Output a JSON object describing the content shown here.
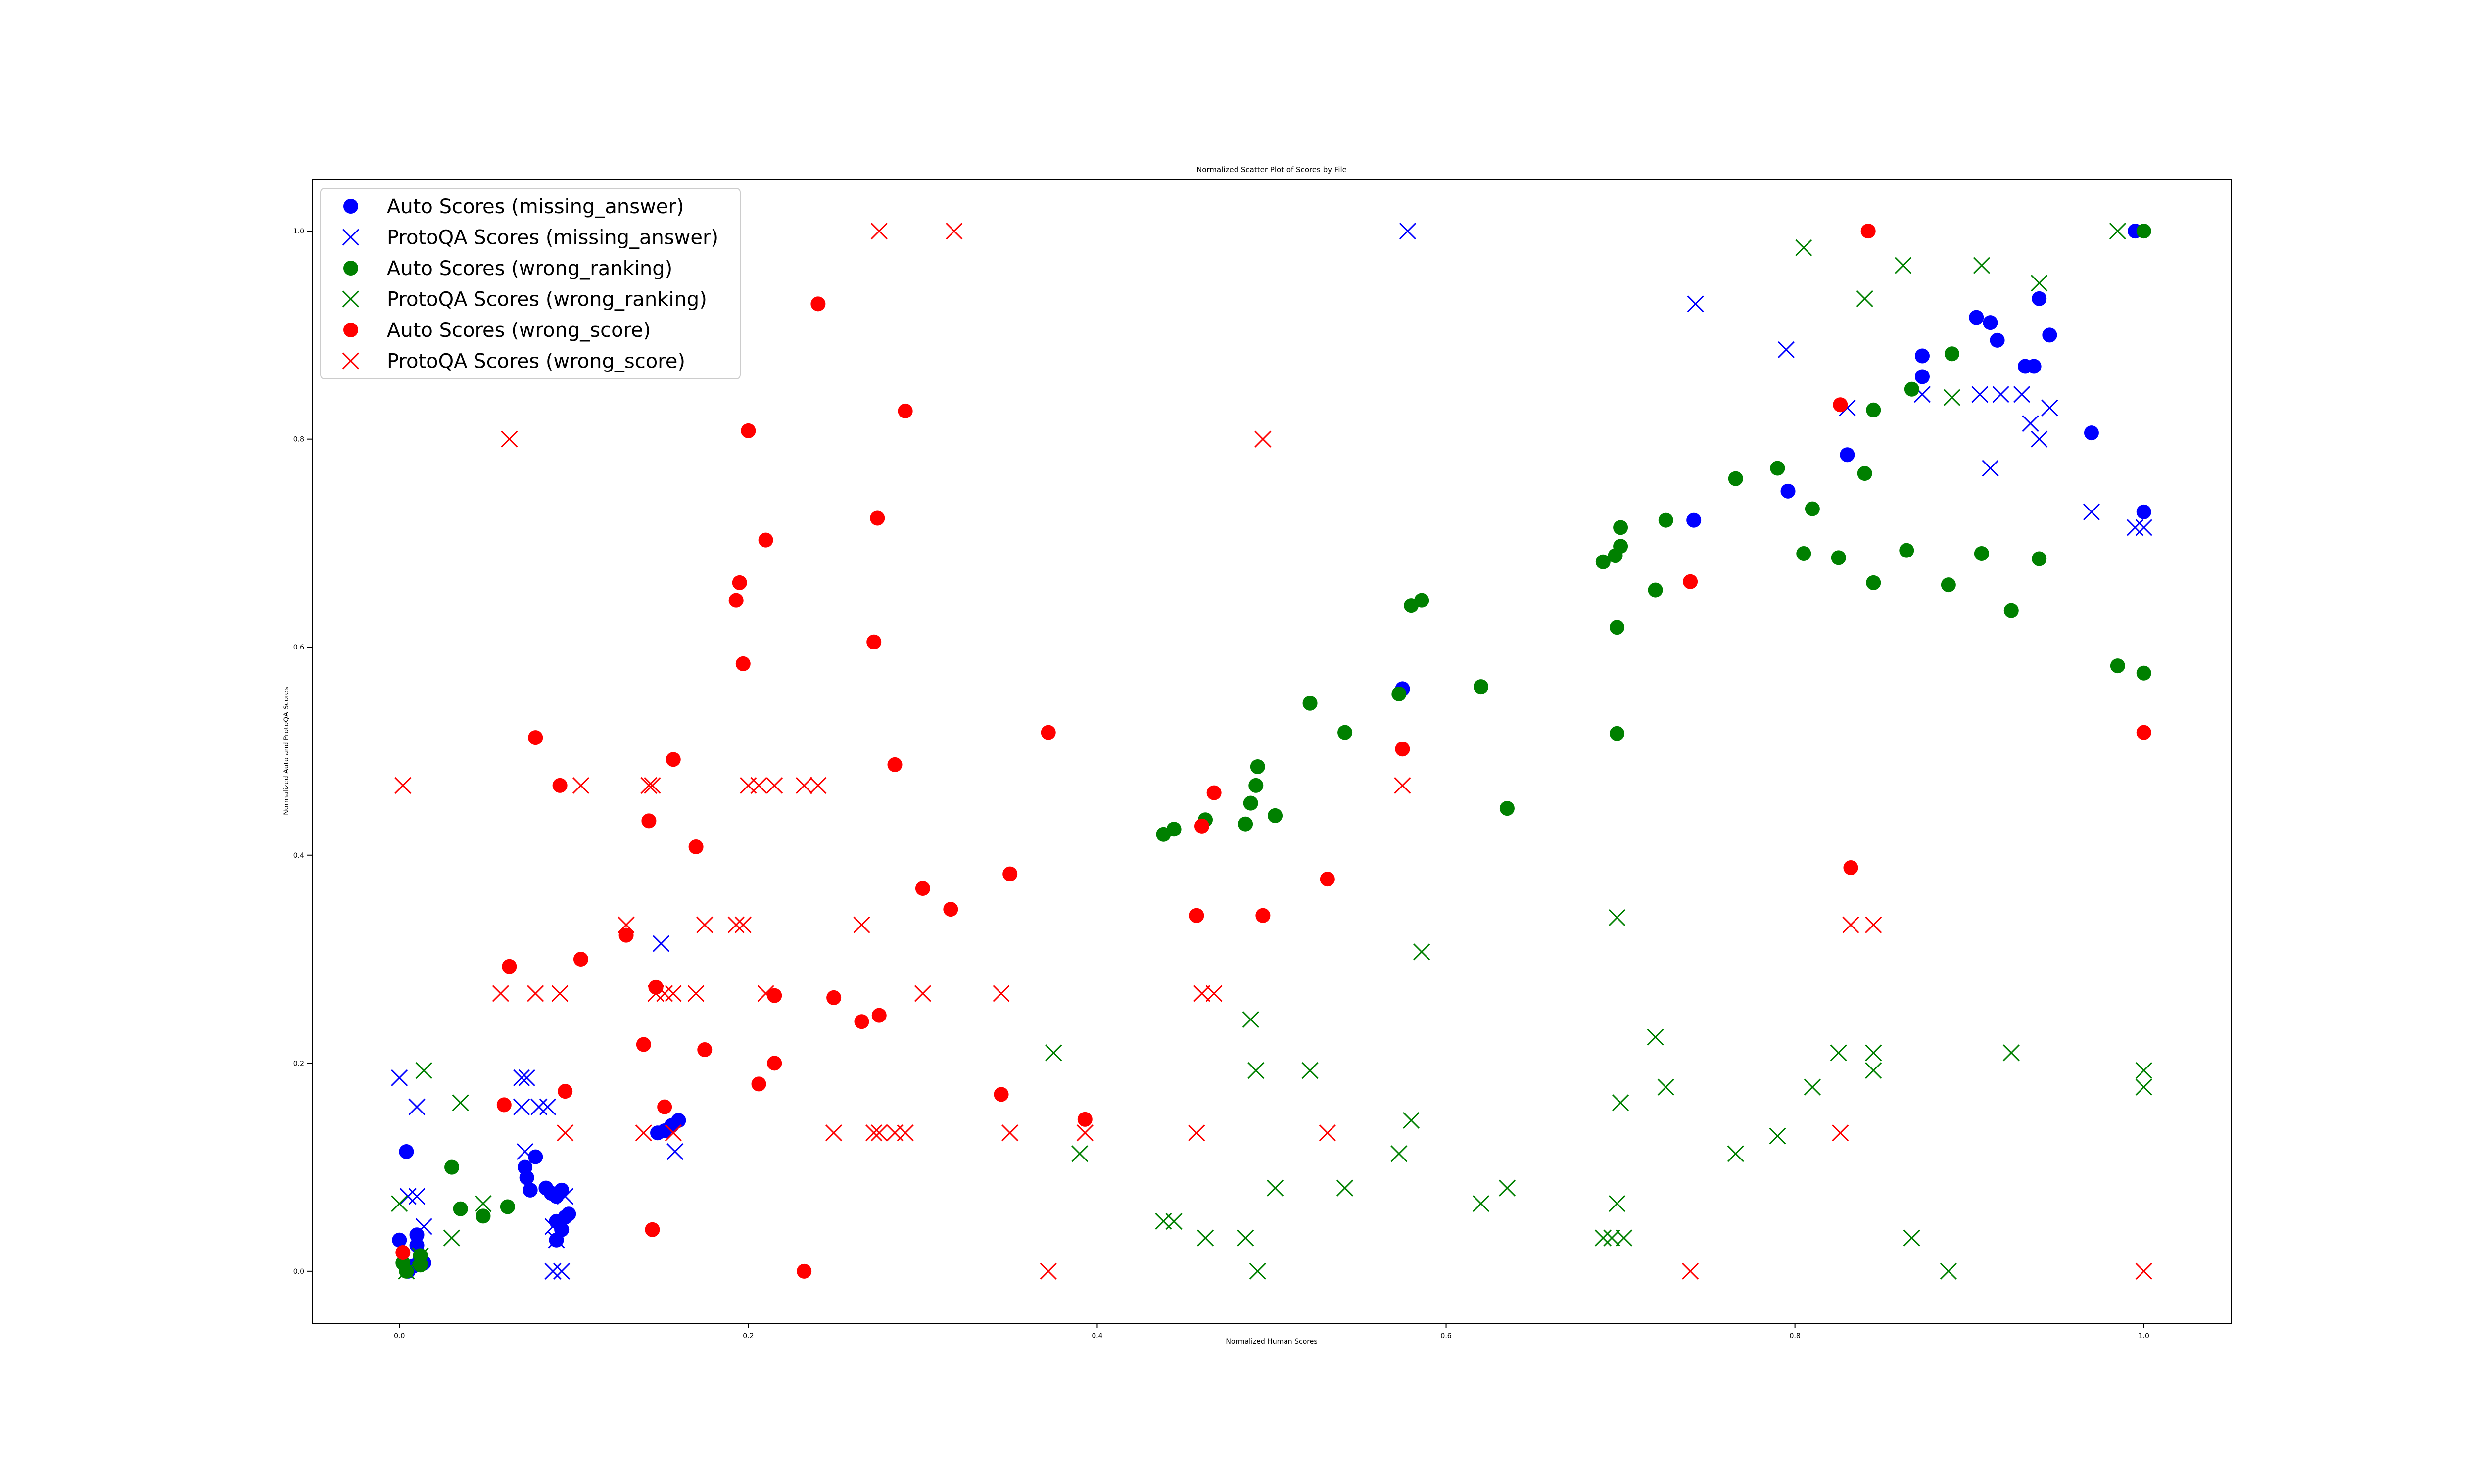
{
  "chart_data": {
    "type": "scatter",
    "title": "Normalized Scatter Plot of Scores by File",
    "xlabel": "Normalized Human Scores",
    "ylabel": "Normalized Auto and ProtoQA Scores",
    "xlim": [
      -0.05,
      1.05
    ],
    "ylim": [
      -0.05,
      1.05
    ],
    "xticks": [
      "0.0",
      "0.2",
      "0.4",
      "0.6",
      "0.8",
      "1.0"
    ],
    "yticks": [
      "0.0",
      "0.2",
      "0.4",
      "0.6",
      "0.8",
      "1.0"
    ],
    "grid": false,
    "legend_position": "top-left",
    "series": [
      {
        "name": "Auto Scores (missing_answer)",
        "marker": "circle",
        "color": "#0000ff",
        "points": [
          [
            0.0,
            0.03
          ],
          [
            0.004,
            0.115
          ],
          [
            0.005,
            0.0
          ],
          [
            0.008,
            0.005
          ],
          [
            0.01,
            0.025
          ],
          [
            0.01,
            0.035
          ],
          [
            0.012,
            0.012
          ],
          [
            0.014,
            0.008
          ],
          [
            0.072,
            0.1
          ],
          [
            0.073,
            0.09
          ],
          [
            0.075,
            0.078
          ],
          [
            0.078,
            0.11
          ],
          [
            0.084,
            0.08
          ],
          [
            0.087,
            0.075
          ],
          [
            0.09,
            0.048
          ],
          [
            0.09,
            0.072
          ],
          [
            0.09,
            0.03
          ],
          [
            0.093,
            0.04
          ],
          [
            0.093,
            0.078
          ],
          [
            0.095,
            0.052
          ],
          [
            0.097,
            0.055
          ],
          [
            0.148,
            0.133
          ],
          [
            0.152,
            0.135
          ],
          [
            0.156,
            0.14
          ],
          [
            0.16,
            0.145
          ],
          [
            0.575,
            0.56
          ],
          [
            0.742,
            0.722
          ],
          [
            0.796,
            0.75
          ],
          [
            0.83,
            0.785
          ],
          [
            0.873,
            0.86
          ],
          [
            0.873,
            0.88
          ],
          [
            0.904,
            0.917
          ],
          [
            0.912,
            0.912
          ],
          [
            0.916,
            0.895
          ],
          [
            0.932,
            0.87
          ],
          [
            0.937,
            0.87
          ],
          [
            0.94,
            0.935
          ],
          [
            0.946,
            0.9
          ],
          [
            0.97,
            0.806
          ],
          [
            0.995,
            1.0
          ],
          [
            1.0,
            0.73
          ]
        ]
      },
      {
        "name": "ProtoQA Scores (missing_answer)",
        "marker": "x",
        "color": "#0000ff",
        "points": [
          [
            0.0,
            0.186
          ],
          [
            0.005,
            0.072
          ],
          [
            0.01,
            0.158
          ],
          [
            0.01,
            0.072
          ],
          [
            0.014,
            0.043
          ],
          [
            0.07,
            0.186
          ],
          [
            0.073,
            0.186
          ],
          [
            0.07,
            0.158
          ],
          [
            0.072,
            0.115
          ],
          [
            0.08,
            0.158
          ],
          [
            0.085,
            0.158
          ],
          [
            0.088,
            0.043
          ],
          [
            0.088,
            0.0
          ],
          [
            0.09,
            0.03
          ],
          [
            0.093,
            0.0
          ],
          [
            0.095,
            0.072
          ],
          [
            0.15,
            0.315
          ],
          [
            0.158,
            0.115
          ],
          [
            0.578,
            1.0
          ],
          [
            0.743,
            0.93
          ],
          [
            0.795,
            0.886
          ],
          [
            0.83,
            0.83
          ],
          [
            0.873,
            0.843
          ],
          [
            0.906,
            0.843
          ],
          [
            0.912,
            0.772
          ],
          [
            0.918,
            0.843
          ],
          [
            0.93,
            0.843
          ],
          [
            0.935,
            0.815
          ],
          [
            0.94,
            0.8
          ],
          [
            0.946,
            0.83
          ],
          [
            0.97,
            0.73
          ],
          [
            0.995,
            0.715
          ],
          [
            1.0,
            0.715
          ]
        ]
      },
      {
        "name": "Auto Scores (wrong_ranking)",
        "marker": "circle",
        "color": "#008000",
        "points": [
          [
            0.002,
            0.008
          ],
          [
            0.004,
            0.0
          ],
          [
            0.012,
            0.015
          ],
          [
            0.012,
            0.006
          ],
          [
            0.03,
            0.1
          ],
          [
            0.035,
            0.06
          ],
          [
            0.048,
            0.053
          ],
          [
            0.062,
            0.062
          ],
          [
            0.438,
            0.42
          ],
          [
            0.444,
            0.425
          ],
          [
            0.462,
            0.434
          ],
          [
            0.485,
            0.43
          ],
          [
            0.488,
            0.45
          ],
          [
            0.491,
            0.467
          ],
          [
            0.492,
            0.485
          ],
          [
            0.502,
            0.438
          ],
          [
            0.522,
            0.546
          ],
          [
            0.542,
            0.518
          ],
          [
            0.573,
            0.555
          ],
          [
            0.58,
            0.64
          ],
          [
            0.586,
            0.645
          ],
          [
            0.62,
            0.562
          ],
          [
            0.635,
            0.445
          ],
          [
            0.69,
            0.682
          ],
          [
            0.697,
            0.688
          ],
          [
            0.698,
            0.619
          ],
          [
            0.698,
            0.517
          ],
          [
            0.7,
            0.715
          ],
          [
            0.7,
            0.697
          ],
          [
            0.72,
            0.655
          ],
          [
            0.726,
            0.722
          ],
          [
            0.766,
            0.762
          ],
          [
            0.79,
            0.772
          ],
          [
            0.805,
            0.69
          ],
          [
            0.81,
            0.733
          ],
          [
            0.825,
            0.686
          ],
          [
            0.84,
            0.767
          ],
          [
            0.845,
            0.662
          ],
          [
            0.845,
            0.828
          ],
          [
            0.864,
            0.693
          ],
          [
            0.867,
            0.848
          ],
          [
            0.888,
            0.66
          ],
          [
            0.89,
            0.882
          ],
          [
            0.907,
            0.69
          ],
          [
            0.924,
            0.635
          ],
          [
            0.94,
            0.685
          ],
          [
            0.985,
            0.582
          ],
          [
            1.0,
            1.0
          ],
          [
            1.0,
            0.575
          ]
        ]
      },
      {
        "name": "ProtoQA Scores (wrong_ranking)",
        "marker": "x",
        "color": "#008000",
        "points": [
          [
            0.0,
            0.065
          ],
          [
            0.004,
            0.0
          ],
          [
            0.012,
            0.015
          ],
          [
            0.014,
            0.193
          ],
          [
            0.03,
            0.032
          ],
          [
            0.035,
            0.162
          ],
          [
            0.048,
            0.065
          ],
          [
            0.375,
            0.21
          ],
          [
            0.39,
            0.113
          ],
          [
            0.438,
            0.048
          ],
          [
            0.444,
            0.048
          ],
          [
            0.462,
            0.032
          ],
          [
            0.485,
            0.032
          ],
          [
            0.488,
            0.242
          ],
          [
            0.491,
            0.193
          ],
          [
            0.492,
            0.0
          ],
          [
            0.502,
            0.08
          ],
          [
            0.522,
            0.193
          ],
          [
            0.542,
            0.08
          ],
          [
            0.573,
            0.113
          ],
          [
            0.58,
            0.145
          ],
          [
            0.586,
            0.307
          ],
          [
            0.62,
            0.065
          ],
          [
            0.635,
            0.08
          ],
          [
            0.69,
            0.032
          ],
          [
            0.695,
            0.032
          ],
          [
            0.698,
            0.065
          ],
          [
            0.698,
            0.34
          ],
          [
            0.7,
            0.162
          ],
          [
            0.702,
            0.032
          ],
          [
            0.72,
            0.225
          ],
          [
            0.726,
            0.177
          ],
          [
            0.766,
            0.113
          ],
          [
            0.79,
            0.13
          ],
          [
            0.805,
            0.984
          ],
          [
            0.81,
            0.177
          ],
          [
            0.825,
            0.21
          ],
          [
            0.84,
            0.935
          ],
          [
            0.845,
            0.21
          ],
          [
            0.845,
            0.193
          ],
          [
            0.862,
            0.967
          ],
          [
            0.867,
            0.032
          ],
          [
            0.888,
            0.0
          ],
          [
            0.89,
            0.84
          ],
          [
            0.907,
            0.967
          ],
          [
            0.924,
            0.21
          ],
          [
            0.94,
            0.95
          ],
          [
            0.985,
            1.0
          ],
          [
            1.0,
            0.177
          ],
          [
            1.0,
            0.193
          ]
        ]
      },
      {
        "name": "Auto Scores (wrong_score)",
        "marker": "circle",
        "color": "#ff0000",
        "points": [
          [
            0.002,
            0.018
          ],
          [
            0.06,
            0.16
          ],
          [
            0.063,
            0.293
          ],
          [
            0.078,
            0.513
          ],
          [
            0.092,
            0.467
          ],
          [
            0.095,
            0.173
          ],
          [
            0.104,
            0.3
          ],
          [
            0.13,
            0.323
          ],
          [
            0.14,
            0.218
          ],
          [
            0.143,
            0.433
          ],
          [
            0.145,
            0.04
          ],
          [
            0.147,
            0.273
          ],
          [
            0.152,
            0.158
          ],
          [
            0.157,
            0.492
          ],
          [
            0.17,
            0.408
          ],
          [
            0.175,
            0.213
          ],
          [
            0.193,
            0.645
          ],
          [
            0.195,
            0.662
          ],
          [
            0.197,
            0.584
          ],
          [
            0.2,
            0.808
          ],
          [
            0.206,
            0.18
          ],
          [
            0.21,
            0.703
          ],
          [
            0.215,
            0.265
          ],
          [
            0.215,
            0.2
          ],
          [
            0.232,
            0.0
          ],
          [
            0.24,
            0.93
          ],
          [
            0.249,
            0.263
          ],
          [
            0.265,
            0.24
          ],
          [
            0.272,
            0.605
          ],
          [
            0.274,
            0.724
          ],
          [
            0.275,
            0.246
          ],
          [
            0.284,
            0.487
          ],
          [
            0.29,
            0.827
          ],
          [
            0.3,
            0.368
          ],
          [
            0.316,
            0.348
          ],
          [
            0.345,
            0.17
          ],
          [
            0.35,
            0.382
          ],
          [
            0.372,
            0.518
          ],
          [
            0.393,
            0.146
          ],
          [
            0.457,
            0.342
          ],
          [
            0.46,
            0.428
          ],
          [
            0.467,
            0.46
          ],
          [
            0.495,
            0.342
          ],
          [
            0.532,
            0.377
          ],
          [
            0.575,
            0.502
          ],
          [
            0.74,
            0.663
          ],
          [
            0.826,
            0.833
          ],
          [
            0.832,
            0.388
          ],
          [
            0.842,
            1.0
          ],
          [
            1.0,
            0.518
          ]
        ]
      },
      {
        "name": "ProtoQA Scores (wrong_score)",
        "marker": "x",
        "color": "#ff0000",
        "points": [
          [
            0.002,
            0.467
          ],
          [
            0.058,
            0.267
          ],
          [
            0.063,
            0.8
          ],
          [
            0.078,
            0.267
          ],
          [
            0.092,
            0.267
          ],
          [
            0.095,
            0.133
          ],
          [
            0.104,
            0.467
          ],
          [
            0.13,
            0.333
          ],
          [
            0.14,
            0.133
          ],
          [
            0.143,
            0.467
          ],
          [
            0.145,
            0.467
          ],
          [
            0.147,
            0.267
          ],
          [
            0.152,
            0.267
          ],
          [
            0.157,
            0.267
          ],
          [
            0.157,
            0.133
          ],
          [
            0.17,
            0.267
          ],
          [
            0.175,
            0.333
          ],
          [
            0.193,
            0.333
          ],
          [
            0.197,
            0.333
          ],
          [
            0.2,
            0.467
          ],
          [
            0.206,
            0.467
          ],
          [
            0.21,
            0.267
          ],
          [
            0.215,
            0.467
          ],
          [
            0.232,
            0.467
          ],
          [
            0.24,
            0.467
          ],
          [
            0.249,
            0.133
          ],
          [
            0.265,
            0.333
          ],
          [
            0.272,
            0.133
          ],
          [
            0.275,
            0.133
          ],
          [
            0.275,
            1.0
          ],
          [
            0.284,
            0.133
          ],
          [
            0.29,
            0.133
          ],
          [
            0.3,
            0.267
          ],
          [
            0.318,
            1.0
          ],
          [
            0.345,
            0.267
          ],
          [
            0.35,
            0.133
          ],
          [
            0.372,
            0.0
          ],
          [
            0.393,
            0.133
          ],
          [
            0.457,
            0.133
          ],
          [
            0.46,
            0.267
          ],
          [
            0.467,
            0.267
          ],
          [
            0.495,
            0.8
          ],
          [
            0.532,
            0.133
          ],
          [
            0.575,
            0.467
          ],
          [
            0.74,
            0.0
          ],
          [
            0.826,
            0.133
          ],
          [
            0.832,
            0.333
          ],
          [
            0.845,
            0.333
          ],
          [
            1.0,
            0.0
          ]
        ]
      }
    ]
  }
}
